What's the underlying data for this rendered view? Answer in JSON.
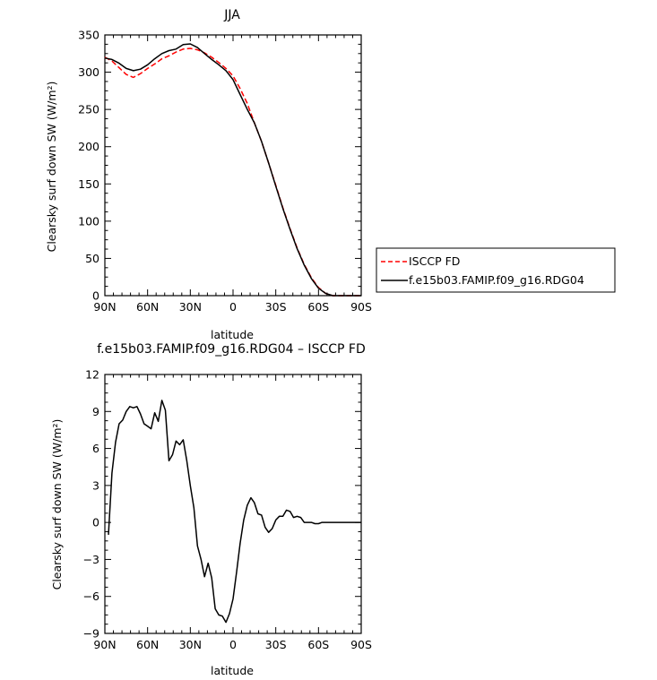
{
  "chart_data": [
    {
      "type": "line",
      "title": "JJA",
      "xlabel": "latitude",
      "ylabel": "Clearsky surf down SW (W/m²)",
      "xlim": [
        90,
        -90
      ],
      "ylim": [
        0,
        350
      ],
      "xticks": [
        90,
        60,
        30,
        0,
        -30,
        -60,
        -90
      ],
      "xtick_labels": [
        "90N",
        "60N",
        "30N",
        "0",
        "30S",
        "60S",
        "90S"
      ],
      "yticks": [
        0,
        50,
        100,
        150,
        200,
        250,
        300,
        350
      ],
      "ytick_labels": [
        "0",
        "50",
        "100",
        "150",
        "200",
        "250",
        "300",
        "350"
      ],
      "legend_position": "right",
      "series": [
        {
          "name": "ISCCP FD",
          "color": "#ff0000",
          "dash": "dashed",
          "x": [
            90,
            85,
            80,
            75,
            70,
            65,
            60,
            55,
            50,
            45,
            40,
            35,
            30,
            25,
            20,
            15,
            10,
            5,
            0,
            -5,
            -10,
            -15,
            -20,
            -25,
            -30,
            -35,
            -40,
            -45,
            -50,
            -55,
            -60,
            -65,
            -70,
            -75,
            -80,
            -85,
            -90
          ],
          "y": [
            320,
            315,
            306,
            297,
            293,
            298,
            305,
            311,
            318,
            322,
            327,
            331,
            332,
            330,
            326,
            320,
            313,
            305,
            295,
            278,
            258,
            232,
            207,
            178,
            148,
            118,
            90,
            64,
            42,
            24,
            11,
            3,
            0,
            0,
            0,
            0,
            0
          ]
        },
        {
          "name": "f.e15b03.FAMIP.f09_g16.RDG04",
          "color": "#000000",
          "dash": "solid",
          "x": [
            90,
            85,
            80,
            75,
            70,
            65,
            60,
            55,
            50,
            45,
            40,
            35,
            30,
            25,
            20,
            15,
            10,
            5,
            0,
            -5,
            -10,
            -15,
            -20,
            -25,
            -30,
            -35,
            -40,
            -45,
            -50,
            -55,
            -60,
            -65,
            -70,
            -75,
            -80,
            -85,
            -90
          ],
          "y": [
            319,
            317,
            312,
            305,
            302,
            304,
            310,
            318,
            325,
            329,
            331,
            337,
            338,
            333,
            325,
            317,
            310,
            302,
            290,
            270,
            250,
            232,
            207,
            178,
            147,
            117,
            89,
            63,
            41,
            23,
            10,
            3,
            0,
            0,
            0,
            0,
            0
          ]
        }
      ]
    },
    {
      "type": "line",
      "title": "f.e15b03.FAMIP.f09_g16.RDG04 – ISCCP FD",
      "xlabel": "latitude",
      "ylabel": "Clearsky surf down SW (W/m²)",
      "xlim": [
        90,
        -90
      ],
      "ylim": [
        -9,
        12
      ],
      "xticks": [
        90,
        60,
        30,
        0,
        -30,
        -60,
        -90
      ],
      "xtick_labels": [
        "90N",
        "60N",
        "30N",
        "0",
        "30S",
        "60S",
        "90S"
      ],
      "yticks": [
        -9,
        -6,
        -3,
        0,
        3,
        6,
        9,
        12
      ],
      "ytick_labels": [
        "−9",
        "−6",
        "−3",
        "0",
        "3",
        "6",
        "9",
        "12"
      ],
      "series": [
        {
          "color": "#000000",
          "dash": "solid",
          "x": [
            87.5,
            85,
            82.5,
            80,
            77.5,
            75,
            72.5,
            70,
            67.5,
            65,
            62.5,
            60,
            57.5,
            55,
            52.5,
            50,
            47.5,
            45,
            42.5,
            40,
            37.5,
            35,
            32.5,
            30,
            27.5,
            25,
            22.5,
            20,
            17.5,
            15,
            12.5,
            10,
            7.5,
            5,
            2.5,
            0,
            -2.5,
            -5,
            -7.5,
            -10,
            -12.5,
            -15,
            -17.5,
            -20,
            -22.5,
            -25,
            -27.5,
            -30,
            -32.5,
            -35,
            -37.5,
            -40,
            -42.5,
            -45,
            -47.5,
            -50,
            -52.5,
            -55,
            -57.5,
            -60,
            -62.5,
            -65,
            -70,
            -75,
            -80,
            -85,
            -90
          ],
          "y": [
            -1.0,
            4.0,
            6.5,
            8.0,
            8.3,
            9.0,
            9.4,
            9.3,
            9.4,
            8.8,
            8.0,
            7.8,
            7.6,
            8.9,
            8.2,
            9.9,
            9.1,
            5.0,
            5.5,
            6.6,
            6.3,
            6.7,
            5.0,
            3.0,
            1.2,
            -1.9,
            -3.0,
            -4.4,
            -3.3,
            -4.5,
            -7.0,
            -7.5,
            -7.6,
            -8.1,
            -7.4,
            -6.2,
            -4.0,
            -1.7,
            0.2,
            1.4,
            2.0,
            1.6,
            0.7,
            0.6,
            -0.4,
            -0.8,
            -0.5,
            0.2,
            0.5,
            0.5,
            1.0,
            0.9,
            0.4,
            0.5,
            0.4,
            0.0,
            0.0,
            0.0,
            -0.1,
            -0.1,
            0.0,
            0.0,
            0.0,
            0.0,
            0.0,
            0.0,
            0.0
          ]
        }
      ]
    }
  ]
}
